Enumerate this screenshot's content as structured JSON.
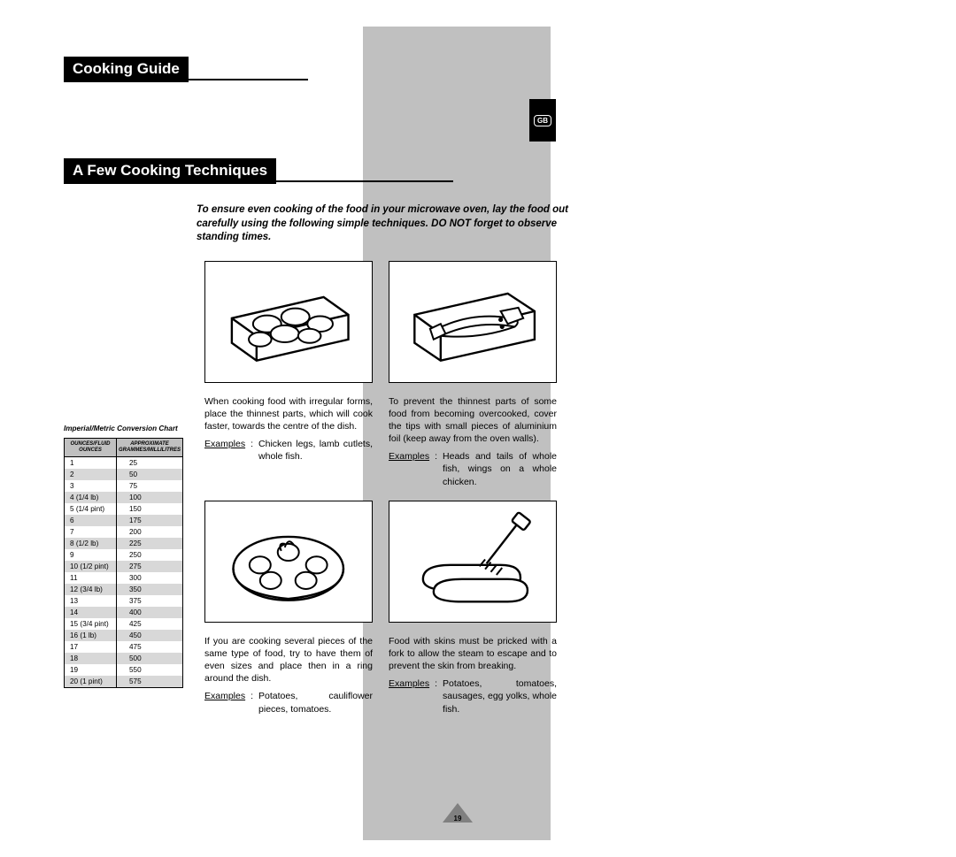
{
  "colors": {
    "background": "#ffffff",
    "gray_band": "#c0c0c0",
    "black": "#000000",
    "row_shade": "#d8d8d8"
  },
  "page_number": "19",
  "gb_label": "GB",
  "title": "Cooking Guide",
  "subtitle": "A Few Cooking Techniques",
  "intro": "To ensure even cooking of the food in your microwave oven, lay the food out carefully using the following simple techniques. DO NOT forget to observe standing times.",
  "conversion": {
    "caption": "Imperial/Metric Conversion Chart",
    "col1": "OUNCES/FLUID OUNCES",
    "col2": "APPROXIMATE GRAMMES/MILLILITRES",
    "rows": [
      {
        "oz": "1",
        "gm": "25"
      },
      {
        "oz": "2",
        "gm": "50"
      },
      {
        "oz": "3",
        "gm": "75"
      },
      {
        "oz": "4   (1/4 lb)",
        "gm": "100"
      },
      {
        "oz": "5   (1/4 pint)",
        "gm": "150"
      },
      {
        "oz": "6",
        "gm": "175"
      },
      {
        "oz": "7",
        "gm": "200"
      },
      {
        "oz": "8   (1/2 lb)",
        "gm": "225"
      },
      {
        "oz": "9",
        "gm": "250"
      },
      {
        "oz": "10 (1/2 pint)",
        "gm": "275"
      },
      {
        "oz": "11",
        "gm": "300"
      },
      {
        "oz": "12 (3/4 lb)",
        "gm": "350"
      },
      {
        "oz": "13",
        "gm": "375"
      },
      {
        "oz": "14",
        "gm": "400"
      },
      {
        "oz": "15 (3/4 pint)",
        "gm": "425"
      },
      {
        "oz": "16 (1 lb)",
        "gm": "450"
      },
      {
        "oz": "17",
        "gm": "475"
      },
      {
        "oz": "18",
        "gm": "500"
      },
      {
        "oz": "19",
        "gm": "550"
      },
      {
        "oz": "20 (1 pint)",
        "gm": "575"
      }
    ]
  },
  "tips": {
    "examples_label": "Examples",
    "t1": {
      "text": "When cooking food with irregular forms, place the thinnest parts, which will cook faster, towards the centre of the dish.",
      "examples": "Chicken legs, lamb cutlets, whole fish."
    },
    "t2": {
      "text": "To prevent the thinnest parts of some food from becoming overcooked, cover the tips with small pieces of aluminium foil (keep away from the oven walls).",
      "examples": "Heads and tails of whole fish, wings on a whole chicken."
    },
    "t3": {
      "text": "If you are cooking several pieces of the same type of food, try to have them of even sizes and place then in a ring around the dish.",
      "examples": "Potatoes, cauliflower pieces, tomatoes."
    },
    "t4": {
      "text": "Food with skins must be pricked with a fork to allow the steam to escape and to prevent the skin from breaking.",
      "examples": "Potatoes, tomatoes, sausages, egg yolks, whole fish."
    }
  }
}
